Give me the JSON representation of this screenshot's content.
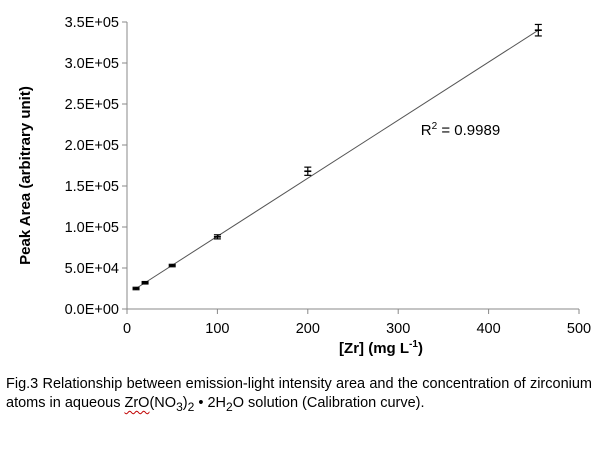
{
  "chart_data": {
    "type": "scatter",
    "title": "",
    "xlabel": "[Zr] (mg L",
    "xlabel_sup": "-1",
    "xlabel_end": ")",
    "ylabel": "Peak Area (arbitrary unit)",
    "xlim": [
      0,
      500
    ],
    "ylim": [
      0,
      350000
    ],
    "x_ticks": [
      0,
      100,
      200,
      300,
      400,
      500
    ],
    "x_tick_labels": [
      "0",
      "100",
      "200",
      "300",
      "400",
      "500"
    ],
    "y_ticks": [
      0,
      50000,
      100000,
      150000,
      200000,
      250000,
      300000,
      350000
    ],
    "y_tick_labels": [
      "0.0E+00",
      "5.0E+04",
      "1.0E+05",
      "1.5E+05",
      "2.0E+05",
      "2.5E+05",
      "3.0E+05",
      "3.5E+05"
    ],
    "grid": false,
    "legend": "none",
    "series": [
      {
        "x": [
          10,
          20,
          50,
          100,
          200,
          455
        ],
        "y": [
          25000,
          32000,
          53000,
          88000,
          168000,
          340000
        ],
        "error": [
          1500,
          1500,
          1500,
          2500,
          5000,
          7000
        ]
      }
    ],
    "trendline": {
      "x": [
        10,
        455
      ],
      "y": [
        25000,
        340000
      ]
    },
    "annotation": {
      "label": "R",
      "sup": "2",
      "value": " = 0.9989",
      "x": 325,
      "y": 212000
    },
    "colors": {
      "line": "#555555",
      "marker": "#000000",
      "axis": "#888888"
    }
  },
  "caption": {
    "part1": "Fig.3 Relationship between emission-light intensity area and the concentration of zirconium atoms in aqueous ",
    "chem1": "ZrO",
    "chem2": "(NO",
    "sub3": "3",
    "chem3": ")",
    "sub2": "2",
    "dot": " • 2H",
    "sub_h": "2",
    "part2": "O solution (Calibration curve)."
  }
}
